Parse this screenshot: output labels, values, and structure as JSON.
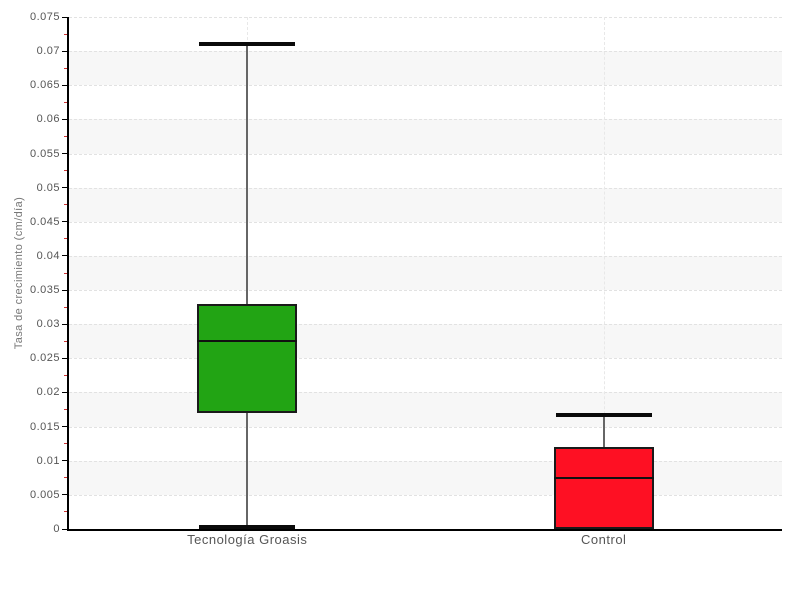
{
  "colors": {
    "background": "#ffffff",
    "band_gray": "#f7f7f7",
    "grid_line": "#e2e2e2",
    "vgrid_line": "#e8e8e8",
    "axis_line": "#000000",
    "major_tick": "#000000",
    "minor_tick": "#cc3333",
    "tick_label": "#555555",
    "axis_title": "#777777",
    "category_label": "#555555",
    "whisker_line": "#666666",
    "whisker_cap": "#0a0a0a",
    "box_border": "#1a1a1a",
    "median_line": "#111111",
    "groasis_green": "#22a414",
    "control_red": "#fe1023"
  },
  "chart_data": {
    "type": "boxplot",
    "ylabel": "Tasa de crecimiento (cm/día)",
    "xlabel": "",
    "ylim": [
      0,
      0.075
    ],
    "y_major_step": 0.005,
    "y_minor_step": 0.0025,
    "y_tick_labels": [
      "0",
      "0.005",
      "0.01",
      "0.015",
      "0.02",
      "0.025",
      "0.03",
      "0.035",
      "0.04",
      "0.045",
      "0.05",
      "0.055",
      "0.06",
      "0.065",
      "0.07",
      "0.075"
    ],
    "grid": "horizontal dashed gridlines at 0.005 steps, vertical dashed gridline at each category center, alternating light-gray bands every 0.005",
    "legend": "none",
    "categories": [
      "Tecnología Groasis",
      "Control"
    ],
    "series": [
      {
        "name": "Tecnología Groasis",
        "min": 0.0002,
        "q1": 0.017,
        "median": 0.0275,
        "q3": 0.033,
        "max": 0.071,
        "color": "#22a414"
      },
      {
        "name": "Control",
        "min": 0.0,
        "q1": 0.0,
        "median": 0.0075,
        "q3": 0.012,
        "max": 0.0167,
        "color": "#fe1023"
      }
    ]
  }
}
